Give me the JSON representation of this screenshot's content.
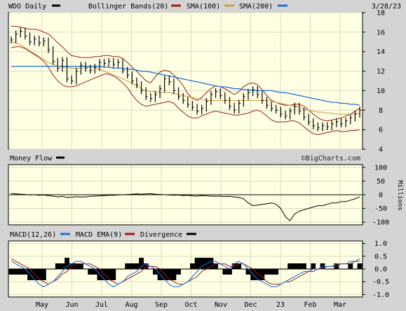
{
  "header": {
    "ticker_label": "WDO Daily",
    "bollinger_label": "Bollinger Bands(20)",
    "sma100_label": "SMA(100)",
    "sma200_label": "SMA(200)",
    "date": "3/28/23"
  },
  "watermark": "©BigCharts.com",
  "colors": {
    "background": "#d4d4d4",
    "plot_bg": "#ffffe4",
    "grid": "#d9d9c0",
    "price": "#000000",
    "bollinger": "#9b1b1b",
    "sma100": "#d2a04a",
    "sma200": "#1f6fd8",
    "macd": "#1f6fd8",
    "macd_ema": "#9b1b1b",
    "divergence": "#000000"
  },
  "chart_data": [
    {
      "type": "line",
      "panel": "price",
      "y_ticks": [
        4,
        6,
        8,
        10,
        12,
        14,
        16,
        18
      ],
      "ylim": [
        4,
        18
      ],
      "x_labels": [
        "May",
        "Jun",
        "Jul",
        "Aug",
        "Sep",
        "Oct",
        "Nov",
        "Dec",
        "23",
        "Feb",
        "Mar"
      ],
      "series": [
        {
          "name": "WDO Daily",
          "values": [
            15.2,
            15.8,
            16.1,
            15.6,
            15.0,
            15.3,
            14.9,
            15.1,
            14.2,
            13.0,
            12.3,
            13.1,
            11.2,
            11.0,
            12.0,
            12.6,
            12.3,
            12.1,
            12.4,
            12.9,
            12.8,
            13.0,
            12.7,
            12.9,
            12.1,
            11.6,
            11.0,
            10.6,
            10.0,
            9.4,
            9.2,
            9.6,
            10.2,
            11.2,
            10.9,
            10.0,
            9.4,
            9.0,
            8.6,
            8.3,
            7.9,
            8.2,
            8.9,
            9.6,
            9.9,
            9.5,
            9.0,
            8.4,
            8.0,
            8.7,
            9.4,
            9.8,
            10.1,
            9.6,
            9.0,
            8.5,
            8.2,
            8.0,
            7.6,
            7.4,
            7.9,
            8.4,
            7.9,
            7.3,
            6.8,
            6.4,
            6.2,
            6.4,
            6.3,
            6.6,
            6.8,
            6.6,
            6.9,
            7.2,
            7.6,
            8.0
          ]
        },
        {
          "name": "SMA(100)",
          "values": [
            15.0,
            14.9,
            14.7,
            14.4,
            14.1,
            13.8,
            13.5,
            13.2,
            12.9,
            12.7,
            12.5,
            12.4,
            12.4,
            12.3,
            12.3,
            12.3,
            12.4,
            12.4,
            12.3,
            12.2,
            12.0,
            11.8,
            11.6,
            11.4,
            11.2,
            11.0,
            10.8,
            10.5,
            10.2,
            10.0,
            9.9,
            9.9,
            9.8,
            9.8,
            9.8,
            9.7,
            9.6,
            9.5,
            9.4,
            9.3,
            9.2,
            9.1,
            9.0,
            9.0,
            9.0,
            9.0,
            9.0,
            9.0,
            9.0,
            9.0,
            9.0,
            9.0,
            9.0,
            9.0,
            9.0,
            9.0,
            8.9,
            8.8,
            8.7,
            8.6,
            8.5,
            8.4,
            8.3,
            8.1,
            8.0,
            7.9,
            7.8,
            7.8,
            7.7,
            7.7,
            7.6,
            7.6,
            7.6,
            7.6,
            7.6,
            7.7
          ]
        },
        {
          "name": "SMA(200)",
          "values": [
            12.5,
            12.5,
            12.5,
            12.5,
            12.5,
            12.5,
            12.5,
            12.5,
            12.5,
            12.5,
            12.5,
            12.5,
            12.5,
            12.5,
            12.5,
            12.5,
            12.5,
            12.5,
            12.5,
            12.5,
            12.4,
            12.4,
            12.3,
            12.3,
            12.3,
            12.2,
            12.2,
            12.1,
            12.0,
            12.0,
            11.9,
            11.8,
            11.7,
            11.6,
            11.5,
            11.4,
            11.3,
            11.2,
            11.1,
            11.0,
            10.9,
            10.8,
            10.7,
            10.6,
            10.5,
            10.4,
            10.4,
            10.3,
            10.2,
            10.2,
            10.1,
            10.1,
            10.0,
            10.0,
            10.0,
            10.0,
            10.0,
            9.9,
            9.8,
            9.8,
            9.7,
            9.6,
            9.5,
            9.4,
            9.3,
            9.2,
            9.1,
            9.0,
            8.9,
            8.8,
            8.8,
            8.7,
            8.7,
            8.6,
            8.6,
            8.5
          ]
        },
        {
          "name": "Bollinger Upper",
          "values": [
            16.6,
            16.6,
            16.5,
            16.4,
            16.3,
            16.3,
            16.2,
            16.0,
            15.8,
            15.4,
            14.9,
            14.5,
            14.0,
            13.6,
            13.5,
            13.4,
            13.4,
            13.4,
            13.5,
            13.5,
            13.6,
            13.6,
            13.5,
            13.5,
            13.3,
            12.9,
            12.4,
            12.0,
            11.5,
            11.0,
            10.8,
            11.4,
            11.9,
            12.1,
            12.0,
            11.6,
            11.1,
            10.5,
            9.7,
            9.2,
            9.0,
            9.3,
            9.8,
            10.2,
            10.5,
            10.4,
            10.2,
            9.9,
            9.6,
            9.9,
            10.4,
            10.7,
            10.8,
            10.6,
            10.1,
            9.5,
            9.0,
            8.8,
            8.6,
            8.5,
            8.5,
            8.6,
            8.6,
            8.4,
            8.0,
            7.6,
            7.2,
            7.0,
            6.9,
            7.0,
            7.1,
            7.2,
            7.4,
            7.6,
            7.9,
            8.2
          ]
        },
        {
          "name": "Bollinger Lower",
          "values": [
            14.4,
            14.5,
            14.5,
            14.3,
            14.0,
            13.7,
            13.4,
            13.0,
            12.4,
            11.6,
            11.0,
            10.6,
            10.4,
            10.4,
            10.5,
            10.7,
            10.9,
            11.1,
            11.3,
            11.5,
            11.7,
            11.7,
            11.5,
            11.2,
            10.8,
            10.3,
            9.6,
            9.0,
            8.6,
            8.4,
            8.5,
            8.6,
            8.7,
            8.8,
            8.9,
            8.7,
            8.2,
            7.8,
            7.4,
            7.2,
            7.2,
            7.4,
            7.6,
            7.8,
            7.9,
            7.8,
            7.7,
            7.6,
            7.5,
            7.5,
            7.6,
            7.7,
            7.9,
            8.0,
            7.8,
            7.4,
            7.0,
            6.8,
            6.8,
            6.8,
            6.9,
            6.9,
            6.7,
            6.3,
            5.9,
            5.6,
            5.5,
            5.6,
            5.7,
            5.8,
            5.9,
            5.8,
            5.8,
            5.9,
            5.9,
            6.0
          ]
        }
      ]
    },
    {
      "type": "line",
      "panel": "money_flow",
      "title": "Money Flow",
      "ylabel": "Millions",
      "y_ticks": [
        100,
        50,
        0,
        -50,
        -100
      ],
      "ylim": [
        -110,
        110
      ],
      "series": [
        {
          "name": "Money Flow",
          "values": [
            4,
            3,
            2,
            1,
            -1,
            0,
            -2,
            -1,
            -3,
            -5,
            -8,
            -6,
            -10,
            -9,
            -7,
            -8,
            -8,
            -6,
            -5,
            -4,
            -3,
            -2,
            -2,
            -1,
            0,
            1,
            2,
            3,
            2,
            3,
            4,
            2,
            1,
            0,
            -1,
            -2,
            -1,
            -3,
            -2,
            -4,
            -5,
            -3,
            -4,
            -5,
            -6,
            -5,
            -7,
            -6,
            -8,
            -10,
            -15,
            -30,
            -40,
            -38,
            -35,
            -33,
            -30,
            -35,
            -50,
            -80,
            -95,
            -70,
            -60,
            -55,
            -50,
            -45,
            -40,
            -40,
            -35,
            -30,
            -30,
            -25,
            -25,
            -20,
            -15,
            -8
          ]
        }
      ]
    },
    {
      "type": "line",
      "panel": "macd",
      "y_ticks": [
        1.0,
        0.5,
        0.0,
        -0.5,
        -1.0
      ],
      "ylim": [
        -1.1,
        1.1
      ],
      "series": [
        {
          "name": "MACD(12,26)",
          "values": [
            0.3,
            0.2,
            0.1,
            0.0,
            -0.2,
            -0.4,
            -0.6,
            -0.7,
            -0.6,
            -0.5,
            -0.3,
            -0.1,
            0.1,
            0.2,
            0.3,
            0.3,
            0.2,
            0.1,
            0.0,
            -0.2,
            -0.4,
            -0.6,
            -0.7,
            -0.6,
            -0.5,
            -0.3,
            -0.2,
            -0.1,
            0.1,
            0.2,
            0.1,
            0.0,
            -0.2,
            -0.4,
            -0.6,
            -0.7,
            -0.7,
            -0.6,
            -0.5,
            -0.3,
            -0.1,
            0.1,
            0.2,
            0.3,
            0.3,
            0.2,
            0.1,
            0.0,
            0.2,
            0.3,
            0.2,
            0.0,
            -0.2,
            -0.4,
            -0.5,
            -0.6,
            -0.7,
            -0.7,
            -0.6,
            -0.5,
            -0.4,
            -0.3,
            -0.2,
            -0.1,
            -0.1,
            0.0,
            0.0,
            0.1,
            0.1,
            0.1,
            0.2,
            0.2,
            0.2,
            0.3,
            0.3,
            0.4
          ]
        },
        {
          "name": "MACD EMA(9)",
          "values": [
            0.4,
            0.3,
            0.2,
            0.1,
            0.0,
            -0.2,
            -0.4,
            -0.5,
            -0.6,
            -0.5,
            -0.4,
            -0.2,
            -0.1,
            0.1,
            0.2,
            0.2,
            0.2,
            0.2,
            0.1,
            0.0,
            -0.2,
            -0.4,
            -0.5,
            -0.6,
            -0.5,
            -0.4,
            -0.3,
            -0.2,
            -0.1,
            0.1,
            0.1,
            0.1,
            0.0,
            -0.2,
            -0.4,
            -0.5,
            -0.6,
            -0.6,
            -0.5,
            -0.4,
            -0.3,
            -0.1,
            0.0,
            0.1,
            0.2,
            0.2,
            0.2,
            0.1,
            0.1,
            0.2,
            0.2,
            0.1,
            0.0,
            -0.2,
            -0.3,
            -0.5,
            -0.6,
            -0.6,
            -0.6,
            -0.5,
            -0.5,
            -0.4,
            -0.3,
            -0.2,
            -0.1,
            -0.1,
            0.0,
            0.0,
            0.1,
            0.1,
            0.1,
            0.2,
            0.2,
            0.2,
            0.3,
            0.3
          ]
        }
      ]
    }
  ]
}
